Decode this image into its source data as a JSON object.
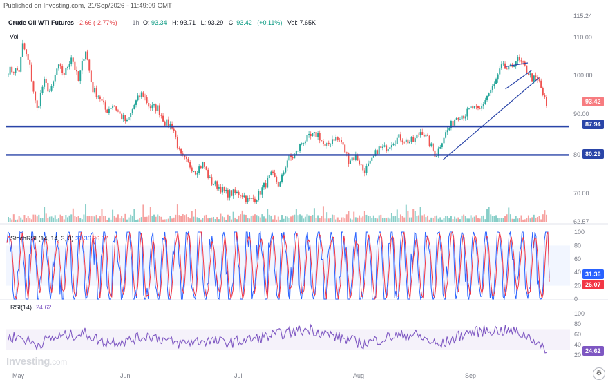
{
  "header": {
    "published": "Published on Investing.com, 21/Sep/2026 - 11:49:09 GMT",
    "symbol": "Crude Oil WTI Futures",
    "change": "-2.66 (-2.77%)",
    "timeframe": "· 1h",
    "open_label": "O:",
    "open": "93.34",
    "high_label": "H:",
    "high": "93.71",
    "low_label": "L:",
    "low": "93.29",
    "close_label": "C:",
    "close": "93.42",
    "close_change": "(+0.11%)",
    "vol_label": "Vol:",
    "vol": "7.65K"
  },
  "panes": {
    "volume_label": "Vol",
    "stoch_label": "StochRSI (14, 14, 3, 3)",
    "stoch_k": "31.36",
    "stoch_d": "26.07",
    "rsi_label": "RSI(14)",
    "rsi_value": "24.62"
  },
  "tags": {
    "last_price": "93.42",
    "level_upper": "87.94",
    "level_lower": "80.29",
    "stoch_k": "31.36",
    "stoch_d": "26.07",
    "rsi": "24.62"
  },
  "colors": {
    "up": "#26a69a",
    "down": "#ef5350",
    "level_line": "#2a45a8",
    "trendline": "#2a45a8",
    "stoch_k": "#2962ff",
    "stoch_d": "#f23645",
    "rsi": "#7e57c2",
    "last_price": "#f77c80"
  },
  "logo": {
    "brand": "Investing",
    "suffix": ".com"
  },
  "chart_data": {
    "type": "line",
    "title": "Crude Oil WTI Futures",
    "interval": "1h",
    "x_labels": [
      "May",
      "Jun",
      "Jul",
      "Aug",
      "Sep"
    ],
    "price_axis_ticks": [
      "115.24",
      "110.00",
      "100.00",
      "90.00",
      "80",
      "70.00",
      "62.57"
    ],
    "ylim": [
      62.57,
      115.24
    ],
    "close_path": [
      {
        "x": "May 1",
        "y": 103
      },
      {
        "x": "May 2",
        "y": 110
      },
      {
        "x": "May 4",
        "y": 104
      },
      {
        "x": "May 6",
        "y": 92
      },
      {
        "x": "May 8",
        "y": 100
      },
      {
        "x": "May 10",
        "y": 97
      },
      {
        "x": "May 12",
        "y": 104
      },
      {
        "x": "May 14",
        "y": 102
      },
      {
        "x": "May 16",
        "y": 107
      },
      {
        "x": "May 18",
        "y": 100
      },
      {
        "x": "May 20",
        "y": 109
      },
      {
        "x": "May 22",
        "y": 98
      },
      {
        "x": "May 24",
        "y": 96
      },
      {
        "x": "May 26",
        "y": 92
      },
      {
        "x": "May 28",
        "y": 94
      },
      {
        "x": "May 30",
        "y": 91
      },
      {
        "x": "Jun 1",
        "y": 89
      },
      {
        "x": "Jun 3",
        "y": 94
      },
      {
        "x": "Jun 5",
        "y": 97
      },
      {
        "x": "Jun 7",
        "y": 93
      },
      {
        "x": "Jun 9",
        "y": 93
      },
      {
        "x": "Jun 11",
        "y": 89
      },
      {
        "x": "Jun 13",
        "y": 88
      },
      {
        "x": "Jun 15",
        "y": 80
      },
      {
        "x": "Jun 17",
        "y": 78
      },
      {
        "x": "Jun 19",
        "y": 76
      },
      {
        "x": "Jun 21",
        "y": 78
      },
      {
        "x": "Jun 23",
        "y": 73
      },
      {
        "x": "Jun 25",
        "y": 72
      },
      {
        "x": "Jun 27",
        "y": 70
      },
      {
        "x": "Jul 1",
        "y": 70
      },
      {
        "x": "Jul 3",
        "y": 68
      },
      {
        "x": "Jul 5",
        "y": 69
      },
      {
        "x": "Jul 7",
        "y": 72
      },
      {
        "x": "Jul 9",
        "y": 75
      },
      {
        "x": "Jul 11",
        "y": 72
      },
      {
        "x": "Jul 13",
        "y": 79
      },
      {
        "x": "Jul 15",
        "y": 80
      },
      {
        "x": "Jul 17",
        "y": 84
      },
      {
        "x": "Jul 19",
        "y": 85
      },
      {
        "x": "Jul 21",
        "y": 86
      },
      {
        "x": "Jul 23",
        "y": 82
      },
      {
        "x": "Jul 25",
        "y": 85
      },
      {
        "x": "Jul 27",
        "y": 84
      },
      {
        "x": "Jul 29",
        "y": 79
      },
      {
        "x": "Jul 31",
        "y": 80
      },
      {
        "x": "Aug 2",
        "y": 76
      },
      {
        "x": "Aug 4",
        "y": 78
      },
      {
        "x": "Aug 6",
        "y": 82
      },
      {
        "x": "Aug 8",
        "y": 82
      },
      {
        "x": "Aug 10",
        "y": 84
      },
      {
        "x": "Aug 12",
        "y": 85
      },
      {
        "x": "Aug 14",
        "y": 84
      },
      {
        "x": "Aug 16",
        "y": 84
      },
      {
        "x": "Aug 18",
        "y": 87
      },
      {
        "x": "Aug 20",
        "y": 84
      },
      {
        "x": "Aug 22",
        "y": 80
      },
      {
        "x": "Aug 24",
        "y": 85
      },
      {
        "x": "Aug 26",
        "y": 88
      },
      {
        "x": "Aug 28",
        "y": 91
      },
      {
        "x": "Aug 30",
        "y": 91
      },
      {
        "x": "Sep 1",
        "y": 93
      },
      {
        "x": "Sep 3",
        "y": 92
      },
      {
        "x": "Sep 5",
        "y": 96
      },
      {
        "x": "Sep 7",
        "y": 99
      },
      {
        "x": "Sep 9",
        "y": 104
      },
      {
        "x": "Sep 11",
        "y": 103
      },
      {
        "x": "Sep 13",
        "y": 106
      },
      {
        "x": "Sep 15",
        "y": 104
      },
      {
        "x": "Sep 17",
        "y": 101
      },
      {
        "x": "Sep 19",
        "y": 100
      },
      {
        "x": "Sep 21",
        "y": 93.42
      }
    ],
    "horizontal_levels": [
      87.94,
      80.29
    ],
    "last_price": 93.42,
    "trendlines": [
      {
        "from": {
          "x": "Aug 24",
          "y": 79
        },
        "to": {
          "x": "Sep 19",
          "y": 101
        }
      },
      {
        "from": {
          "x": "Sep 10",
          "y": 98
        },
        "to": {
          "x": "Sep 17",
          "y": 103
        }
      },
      {
        "from": {
          "x": "Sep 10",
          "y": 104
        },
        "to": {
          "x": "Sep 16",
          "y": 105
        }
      }
    ],
    "stoch_rsi": {
      "k": 31.36,
      "d": 26.07,
      "axis_ticks": [
        "100",
        "80",
        "60",
        "40",
        "20",
        "0"
      ],
      "ylim": [
        0,
        100
      ],
      "bands": [
        20,
        80
      ]
    },
    "rsi": {
      "value": 24.62,
      "axis_ticks": [
        "100",
        "80",
        "60",
        "40",
        "20"
      ],
      "ylim": [
        0,
        100
      ],
      "bands": [
        30,
        70
      ],
      "path": [
        {
          "x": "May 1",
          "y": 55
        },
        {
          "x": "May 6",
          "y": 40
        },
        {
          "x": "May 10",
          "y": 52
        },
        {
          "x": "May 15",
          "y": 58
        },
        {
          "x": "May 20",
          "y": 62
        },
        {
          "x": "May 25",
          "y": 45
        },
        {
          "x": "Jun 1",
          "y": 48
        },
        {
          "x": "Jun 7",
          "y": 58
        },
        {
          "x": "Jun 14",
          "y": 42
        },
        {
          "x": "Jun 21",
          "y": 48
        },
        {
          "x": "Jun 28",
          "y": 44
        },
        {
          "x": "Jul 5",
          "y": 52
        },
        {
          "x": "Jul 12",
          "y": 62
        },
        {
          "x": "Jul 19",
          "y": 70
        },
        {
          "x": "Jul 26",
          "y": 55
        },
        {
          "x": "Aug 2",
          "y": 42
        },
        {
          "x": "Aug 9",
          "y": 55
        },
        {
          "x": "Aug 16",
          "y": 60
        },
        {
          "x": "Aug 23",
          "y": 38
        },
        {
          "x": "Aug 30",
          "y": 62
        },
        {
          "x": "Sep 6",
          "y": 68
        },
        {
          "x": "Sep 12",
          "y": 66
        },
        {
          "x": "Sep 17",
          "y": 54
        },
        {
          "x": "Sep 21",
          "y": 24.62
        }
      ]
    }
  }
}
